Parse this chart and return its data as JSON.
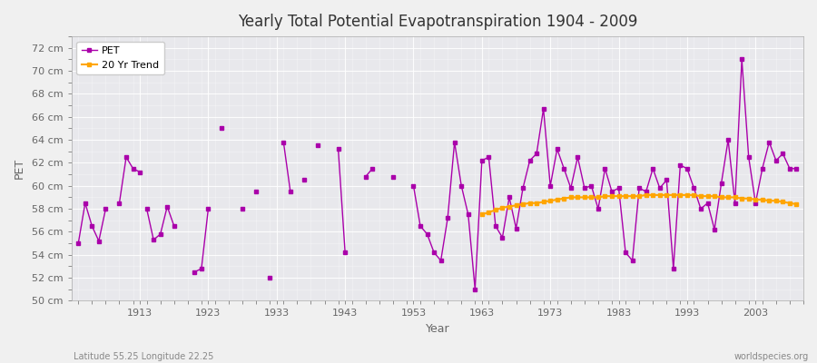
{
  "title": "Yearly Total Potential Evapotranspiration 1904 - 2009",
  "xlabel": "Year",
  "ylabel": "PET",
  "subtitle_left": "Latitude 55.25 Longitude 22.25",
  "subtitle_right": "worldspecies.org",
  "ylim": [
    50,
    73
  ],
  "xlim": [
    1903,
    2010
  ],
  "yticks": [
    50,
    52,
    54,
    56,
    58,
    60,
    62,
    64,
    66,
    68,
    70,
    72
  ],
  "xticks": [
    1913,
    1923,
    1933,
    1943,
    1953,
    1963,
    1973,
    1983,
    1993,
    2003
  ],
  "pet_color": "#AA00AA",
  "trend_color": "#FFA500",
  "bg_color": "#F0F0F0",
  "plot_bg_color": "#E8E8EC",
  "grid_color": "#FFFFFF",
  "legend_labels": [
    "PET",
    "20 Yr Trend"
  ],
  "segments": [
    {
      "years": [
        1904,
        1905,
        1906,
        1907,
        1908
      ],
      "values": [
        55.0,
        58.5,
        56.5,
        55.2,
        58.0
      ]
    },
    {
      "years": [
        1910,
        1911,
        1912,
        1913
      ],
      "values": [
        58.5,
        62.5,
        61.5,
        61.2
      ]
    },
    {
      "years": [
        1914,
        1915,
        1916,
        1917,
        1918
      ],
      "values": [
        58.0,
        55.3,
        55.8,
        58.2,
        56.5
      ]
    },
    {
      "years": [
        1921,
        1922,
        1923
      ],
      "values": [
        52.5,
        52.8,
        58.0
      ]
    },
    {
      "years": [
        1925
      ],
      "values": [
        65.0
      ]
    },
    {
      "years": [
        1928
      ],
      "values": [
        58.0
      ]
    },
    {
      "years": [
        1930
      ],
      "values": [
        59.5
      ]
    },
    {
      "years": [
        1932
      ],
      "values": [
        52.0
      ]
    },
    {
      "years": [
        1934,
        1935
      ],
      "values": [
        63.8,
        59.5
      ]
    },
    {
      "years": [
        1937
      ],
      "values": [
        60.5
      ]
    },
    {
      "years": [
        1939
      ],
      "values": [
        63.5
      ]
    },
    {
      "years": [
        1942,
        1943
      ],
      "values": [
        63.2,
        54.2
      ]
    },
    {
      "years": [
        1946,
        1947
      ],
      "values": [
        60.8,
        61.5
      ]
    },
    {
      "years": [
        1950
      ],
      "values": [
        60.8
      ]
    },
    {
      "years": [
        1953,
        1954,
        1955,
        1956,
        1957,
        1958,
        1959,
        1960,
        1961,
        1962,
        1963,
        1964,
        1965,
        1966,
        1967,
        1968,
        1969,
        1970,
        1971,
        1972,
        1973,
        1974,
        1975,
        1976,
        1977,
        1978,
        1979,
        1980,
        1981,
        1982,
        1983,
        1984,
        1985,
        1986,
        1987,
        1988,
        1989,
        1990,
        1991,
        1992,
        1993,
        1994,
        1995,
        1996,
        1997,
        1998,
        1999,
        2000,
        2001,
        2002,
        2003,
        2004,
        2005,
        2006,
        2007,
        2008,
        2009
      ],
      "values": [
        60.0,
        56.5,
        55.8,
        54.2,
        53.5,
        57.2,
        63.8,
        60.0,
        57.5,
        51.0,
        62.2,
        62.5,
        56.5,
        55.5,
        59.0,
        56.3,
        59.8,
        62.2,
        62.8,
        66.7,
        60.0,
        63.2,
        61.5,
        59.8,
        62.5,
        59.8,
        60.0,
        58.0,
        61.5,
        59.5,
        59.8,
        54.2,
        53.5,
        59.8,
        59.5,
        61.5,
        59.8,
        60.5,
        52.8,
        61.8,
        61.5,
        59.8,
        58.0,
        58.5,
        56.2,
        60.2,
        64.0,
        58.5,
        71.0,
        62.5,
        58.5,
        61.5,
        63.8,
        62.2,
        62.8,
        61.5,
        61.5
      ]
    }
  ],
  "trend_years": [
    1963,
    1964,
    1965,
    1966,
    1967,
    1968,
    1969,
    1970,
    1971,
    1972,
    1973,
    1974,
    1975,
    1976,
    1977,
    1978,
    1979,
    1980,
    1981,
    1982,
    1983,
    1984,
    1985,
    1986,
    1987,
    1988,
    1989,
    1990,
    1991,
    1992,
    1993,
    1994,
    1995,
    1996,
    1997,
    1998,
    1999,
    2000,
    2001,
    2002,
    2003,
    2004,
    2005,
    2006,
    2007,
    2008,
    2009
  ],
  "trend_values": [
    57.5,
    57.7,
    57.9,
    58.1,
    58.2,
    58.3,
    58.4,
    58.5,
    58.5,
    58.6,
    58.7,
    58.8,
    58.9,
    59.0,
    59.0,
    59.0,
    59.0,
    59.0,
    59.1,
    59.1,
    59.1,
    59.1,
    59.1,
    59.1,
    59.2,
    59.2,
    59.2,
    59.2,
    59.2,
    59.2,
    59.2,
    59.2,
    59.1,
    59.1,
    59.1,
    59.0,
    59.0,
    59.0,
    58.9,
    58.9,
    58.8,
    58.8,
    58.7,
    58.7,
    58.6,
    58.5,
    58.4
  ]
}
